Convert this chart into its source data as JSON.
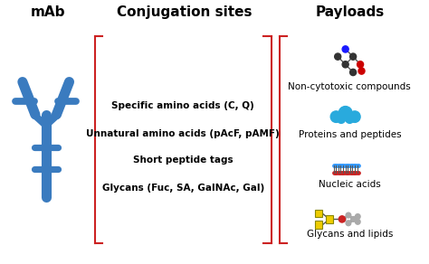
{
  "title_mab": "mAb",
  "title_conjugation": "Conjugation sites",
  "title_payloads": "Payloads",
  "conjugation_lines": [
    "Specific amino acids (C, Q)",
    "Unnatural amino acids (pAcF, pAMF)",
    "Short peptide tags",
    "Glycans (Fuc, SA, GalNAc, Gal)"
  ],
  "payload_labels": [
    "Non-cytotoxic compounds",
    "Proteins and peptides",
    "Nucleic acids",
    "Glycans and lipids"
  ],
  "antibody_color": "#3a7bbf",
  "bracket_color": "#cc2222",
  "background_color": "#ffffff",
  "title_fontsize": 11,
  "text_fontsize": 7.5,
  "label_fontsize": 7.5
}
